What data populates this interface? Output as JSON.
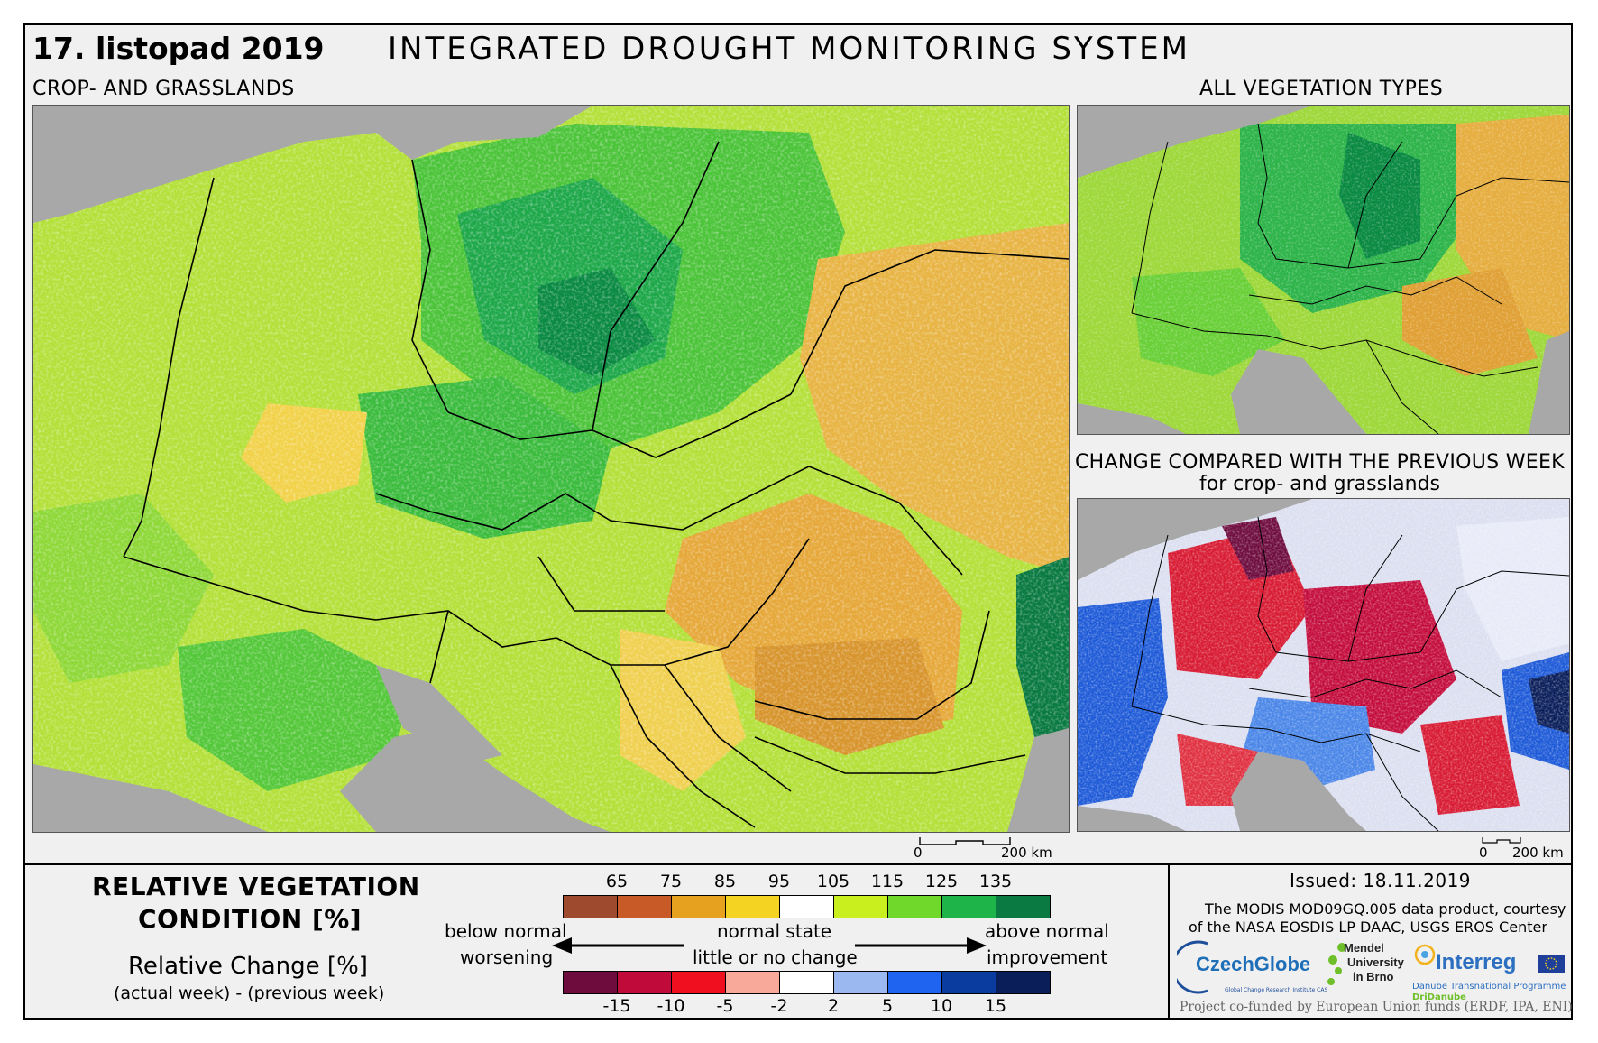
{
  "header": {
    "date": "17. listopad 2019",
    "title": "INTEGRATED DROUGHT MONITORING SYSTEM"
  },
  "panels": {
    "main_label": "CROP- AND GRASSLANDS",
    "allveg_label": "ALL VEGETATION TYPES",
    "change_label_line1": "CHANGE COMPARED WITH THE PREVIOUS WEEK",
    "change_label_line2": "for crop- and grasslands",
    "scale_zero": "0",
    "scale_km": "200 km"
  },
  "legend": {
    "title_line1": "RELATIVE VEGETATION",
    "title_line2": "CONDITION [%]",
    "sub_line1": "Relative Change [%]",
    "sub_line2": "(actual week) - (previous week)",
    "condition_ticks": [
      "65",
      "75",
      "85",
      "95",
      "105",
      "115",
      "125",
      "135"
    ],
    "condition_colors": [
      "#9e4a2e",
      "#c85a28",
      "#e6a21e",
      "#f5d323",
      "#ffffff",
      "#c9f01e",
      "#6fd82a",
      "#1eb44a",
      "#0a7a42"
    ],
    "change_ticks": [
      "-15",
      "-10",
      "-5",
      "-2",
      "2",
      "5",
      "10",
      "15"
    ],
    "change_colors": [
      "#6e0c3e",
      "#c00a3a",
      "#f00f1e",
      "#f8a99a",
      "#ffffff",
      "#9bb8f0",
      "#1e64f0",
      "#0a3ca0",
      "#0a1e5a"
    ],
    "below_normal": "below normal",
    "worsening": "worsening",
    "normal_state": "normal state",
    "little_change": "little or no change",
    "above_normal": "above normal",
    "improvement": "improvement"
  },
  "credits": {
    "issued": "Issued: 18.11.2019",
    "courtesy_line1": "The MODIS MOD09GQ.005 data product, courtesy",
    "courtesy_line2": "of the NASA EOSDIS LP DAAC, USGS EROS Center",
    "czechglobe": "CzechGlobe",
    "czechglobe_sub": "Global Change Research Institute CAS",
    "mendel_line1": "Mendel",
    "mendel_line2": "University",
    "mendel_line3": "in Brno",
    "interreg": "Interreg",
    "interreg_sub1": "Danube Transnational Programme",
    "interreg_sub2": "DriDanube",
    "cofund": "Project co-funded by European Union funds (ERDF, IPA, ENI)"
  }
}
